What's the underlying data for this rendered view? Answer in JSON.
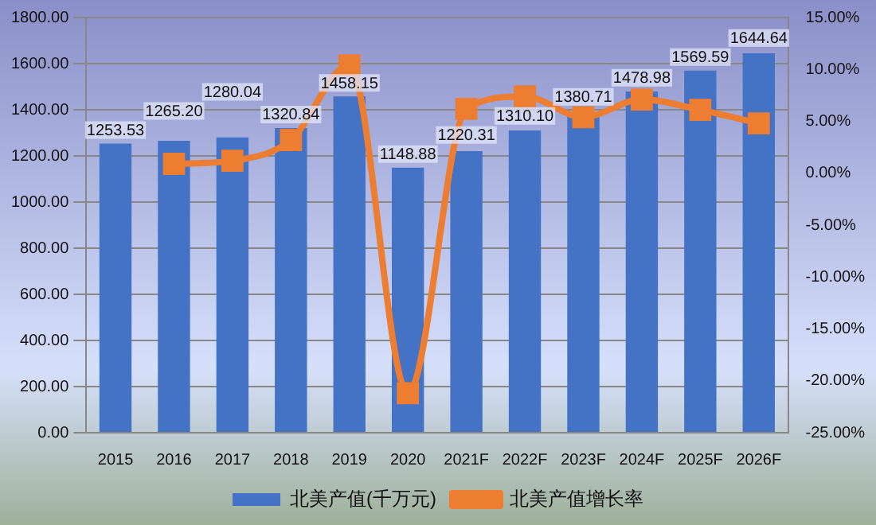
{
  "chart_data": {
    "type": "bar",
    "categories": [
      "2015",
      "2016",
      "2017",
      "2018",
      "2019",
      "2020",
      "2021F",
      "2022F",
      "2023F",
      "2024F",
      "2025F",
      "2026F"
    ],
    "series": [
      {
        "name": "北美产值(千万元)",
        "color": "#4472c4",
        "values": [
          1253.53,
          1265.2,
          1280.04,
          1320.84,
          1458.15,
          1148.88,
          1220.31,
          1310.1,
          1380.71,
          1478.98,
          1569.59,
          1644.64
        ],
        "value_labels": [
          "1253.53",
          "1265.20",
          "1280.04",
          "1320.84",
          "1458.15",
          "1148.88",
          "1220.31",
          "1310.10",
          "1380.71",
          "1478.98",
          "1569.59",
          "1644.64"
        ]
      },
      {
        "name": "北美产值增长率",
        "type": "line",
        "axis": "y2",
        "color": "#ed7d31",
        "values": [
          null,
          0.9,
          1.2,
          3.2,
          10.4,
          -21.2,
          6.2,
          7.4,
          5.4,
          7.1,
          6.1,
          4.8
        ]
      }
    ],
    "ylim": [
      0,
      1800
    ],
    "yticks": [
      {
        "value": 0,
        "label": "0.00"
      },
      {
        "value": 200,
        "label": "200.00"
      },
      {
        "value": 400,
        "label": "400.00"
      },
      {
        "value": 600,
        "label": "600.00"
      },
      {
        "value": 800,
        "label": "800.00"
      },
      {
        "value": 1000,
        "label": "1000.00"
      },
      {
        "value": 1200,
        "label": "1200.00"
      },
      {
        "value": 1400,
        "label": "1400.00"
      },
      {
        "value": 1600,
        "label": "1600.00"
      },
      {
        "value": 1800,
        "label": "1800.00"
      }
    ],
    "y2lim": [
      -25,
      15
    ],
    "y2ticks": [
      {
        "value": -25,
        "label": "-25.00%"
      },
      {
        "value": -20,
        "label": "-20.00%"
      },
      {
        "value": -15,
        "label": "-15.00%"
      },
      {
        "value": -10,
        "label": "-10.00%"
      },
      {
        "value": -5,
        "label": "-5.00%"
      },
      {
        "value": 0,
        "label": "0.00%"
      },
      {
        "value": 5,
        "label": "5.00%"
      },
      {
        "value": 10,
        "label": "10.00%"
      },
      {
        "value": 15,
        "label": "15.00%"
      }
    ],
    "grid": "y",
    "legend": "bottom",
    "marker": "square",
    "line_style": "solid"
  }
}
